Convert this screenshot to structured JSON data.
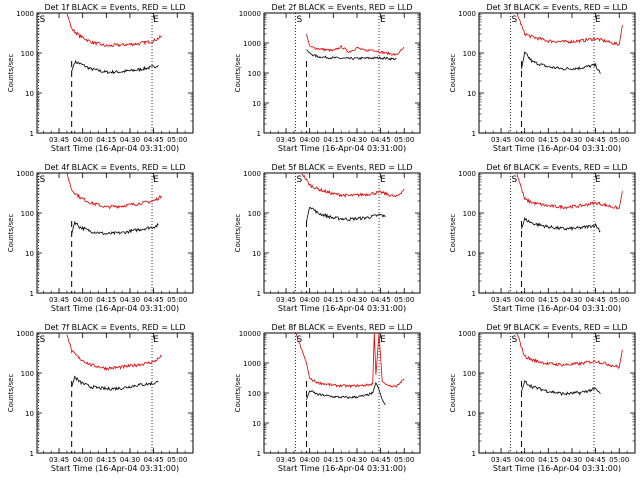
{
  "page": {
    "xlabel": "Start Time (16-Apr-04 03:31:00)",
    "ylabel": "Counts/sec",
    "marker_s": "S",
    "marker_e": "E"
  },
  "colors": {
    "events": "#000000",
    "lld": "#e00000",
    "axes": "#000000"
  },
  "chart_data": [
    {
      "type": "line",
      "title": "Det 1f BLACK = Events, RED = LLD",
      "xticks": [
        "03:45",
        "04:00",
        "04:15",
        "04:30",
        "04:45",
        "05:00"
      ],
      "yticks": [
        "1",
        "10",
        "100",
        "1000"
      ],
      "ylim": [
        1,
        1000
      ],
      "yscale": "log",
      "series": [
        {
          "name": "Events",
          "x": [
            "03:53",
            "03:55",
            "03:58",
            "04:05",
            "04:15",
            "04:25",
            "04:35",
            "04:45",
            "04:48"
          ],
          "y": [
            35,
            60,
            55,
            40,
            33,
            34,
            38,
            45,
            50
          ]
        },
        {
          "name": "LLD",
          "x": [
            "03:50",
            "03:53",
            "03:58",
            "04:05",
            "04:15",
            "04:25",
            "04:35",
            "04:45",
            "04:50"
          ],
          "y": [
            1000,
            400,
            270,
            190,
            150,
            160,
            170,
            200,
            260
          ]
        }
      ]
    },
    {
      "type": "line",
      "title": "Det 2f BLACK = Events, RED = LLD",
      "xticks": [
        "03:45",
        "04:00",
        "04:15",
        "04:30",
        "04:45",
        "05:00"
      ],
      "yticks": [
        "1",
        "10",
        "100",
        "1000",
        "10000"
      ],
      "ylim": [
        1,
        10000
      ],
      "yscale": "log",
      "series": [
        {
          "name": "Events",
          "x": [
            "03:58",
            "04:00",
            "04:05",
            "04:15",
            "04:25",
            "04:35",
            "04:45",
            "04:55"
          ],
          "y": [
            600,
            450,
            350,
            320,
            300,
            310,
            320,
            290
          ]
        },
        {
          "name": "LLD",
          "x": [
            "03:58",
            "04:00",
            "04:05",
            "04:15",
            "04:20",
            "04:25",
            "04:30",
            "04:35",
            "04:40",
            "04:45",
            "04:55",
            "05:00"
          ],
          "y": [
            2000,
            750,
            650,
            550,
            750,
            500,
            700,
            550,
            600,
            500,
            400,
            700
          ]
        }
      ]
    },
    {
      "type": "line",
      "title": "Det 3f BLACK = Events, RED = LLD",
      "xticks": [
        "03:45",
        "04:00",
        "04:15",
        "04:30",
        "04:45",
        "05:00"
      ],
      "yticks": [
        "1",
        "10",
        "100",
        "1000"
      ],
      "ylim": [
        1,
        1000
      ],
      "yscale": "log",
      "series": [
        {
          "name": "Events",
          "x": [
            "03:58",
            "04:00",
            "04:05",
            "04:15",
            "04:25",
            "04:35",
            "04:45",
            "04:48"
          ],
          "y": [
            40,
            100,
            60,
            45,
            40,
            42,
            50,
            30
          ]
        },
        {
          "name": "LLD",
          "x": [
            "03:55",
            "04:00",
            "04:05",
            "04:15",
            "04:25",
            "04:35",
            "04:45",
            "05:00",
            "05:02"
          ],
          "y": [
            1000,
            300,
            250,
            200,
            190,
            200,
            230,
            160,
            500
          ]
        }
      ]
    },
    {
      "type": "line",
      "title": "Det 4f BLACK = Events, RED = LLD",
      "xticks": [
        "03:45",
        "04:00",
        "04:15",
        "04:30",
        "04:45",
        "05:00"
      ],
      "yticks": [
        "1",
        "10",
        "100",
        "1000"
      ],
      "ylim": [
        1,
        1000
      ],
      "yscale": "log",
      "series": [
        {
          "name": "Events",
          "x": [
            "03:53",
            "03:55",
            "03:58",
            "04:05",
            "04:15",
            "04:25",
            "04:35",
            "04:45",
            "04:48"
          ],
          "y": [
            30,
            60,
            45,
            35,
            30,
            32,
            38,
            45,
            50
          ]
        },
        {
          "name": "LLD",
          "x": [
            "03:50",
            "03:53",
            "03:58",
            "04:05",
            "04:15",
            "04:25",
            "04:35",
            "04:45",
            "04:50"
          ],
          "y": [
            1000,
            380,
            250,
            180,
            140,
            150,
            170,
            200,
            260
          ]
        }
      ]
    },
    {
      "type": "line",
      "title": "Det 5f BLACK = Events, RED = LLD",
      "xticks": [
        "03:45",
        "04:00",
        "04:15",
        "04:30",
        "04:45",
        "05:00"
      ],
      "yticks": [
        "1",
        "10",
        "100",
        "1000"
      ],
      "ylim": [
        1,
        1000
      ],
      "yscale": "log",
      "series": [
        {
          "name": "Events",
          "x": [
            "03:58",
            "04:00",
            "04:05",
            "04:15",
            "04:25",
            "04:35",
            "04:45",
            "04:48"
          ],
          "y": [
            60,
            150,
            100,
            75,
            70,
            75,
            90,
            80
          ]
        },
        {
          "name": "LLD",
          "x": [
            "03:55",
            "04:00",
            "04:05",
            "04:15",
            "04:25",
            "04:35",
            "04:45",
            "04:55",
            "05:00"
          ],
          "y": [
            1000,
            500,
            400,
            300,
            270,
            290,
            330,
            250,
            400
          ]
        }
      ]
    },
    {
      "type": "line",
      "title": "Det 6f BLACK = Events, RED = LLD",
      "xticks": [
        "03:45",
        "04:00",
        "04:15",
        "04:30",
        "04:45",
        "05:00"
      ],
      "yticks": [
        "1",
        "10",
        "100",
        "1000"
      ],
      "ylim": [
        1,
        1000
      ],
      "yscale": "log",
      "series": [
        {
          "name": "Events",
          "x": [
            "03:58",
            "04:00",
            "04:05",
            "04:15",
            "04:25",
            "04:35",
            "04:45",
            "04:48"
          ],
          "y": [
            40,
            70,
            55,
            45,
            40,
            42,
            50,
            35
          ]
        },
        {
          "name": "LLD",
          "x": [
            "03:55",
            "04:00",
            "04:05",
            "04:15",
            "04:25",
            "04:35",
            "04:45",
            "05:00",
            "05:02"
          ],
          "y": [
            1000,
            220,
            180,
            150,
            140,
            150,
            180,
            130,
            350
          ]
        }
      ]
    },
    {
      "type": "line",
      "title": "Det 7f BLACK = Events, RED = LLD",
      "xticks": [
        "03:45",
        "04:00",
        "04:15",
        "04:30",
        "04:45",
        "05:00"
      ],
      "yticks": [
        "1",
        "10",
        "100",
        "1000"
      ],
      "ylim": [
        1,
        1000
      ],
      "yscale": "log",
      "series": [
        {
          "name": "Events",
          "x": [
            "03:53",
            "03:55",
            "03:58",
            "04:05",
            "04:15",
            "04:25",
            "04:35",
            "04:45",
            "04:48"
          ],
          "y": [
            45,
            80,
            60,
            45,
            40,
            42,
            50,
            55,
            60
          ]
        },
        {
          "name": "LLD",
          "x": [
            "03:50",
            "03:53",
            "03:58",
            "04:05",
            "04:15",
            "04:25",
            "04:35",
            "04:45",
            "04:50"
          ],
          "y": [
            1000,
            350,
            230,
            160,
            130,
            140,
            160,
            190,
            260
          ]
        }
      ]
    },
    {
      "type": "line",
      "title": "Det 8f BLACK = Events, RED = LLD",
      "xticks": [
        "03:45",
        "04:00",
        "04:15",
        "04:30",
        "04:45",
        "05:00"
      ],
      "yticks": [
        "1",
        "10",
        "100",
        "1000",
        "10000"
      ],
      "ylim": [
        1,
        10000
      ],
      "yscale": "log",
      "series": [
        {
          "name": "Events",
          "x": [
            "03:58",
            "04:00",
            "04:05",
            "04:15",
            "04:25",
            "04:35",
            "04:40",
            "04:42",
            "04:44",
            "04:46",
            "04:48"
          ],
          "y": [
            60,
            120,
            90,
            75,
            70,
            80,
            100,
            220,
            130,
            60,
            40
          ]
        },
        {
          "name": "LLD",
          "x": [
            "03:51",
            "03:58",
            "04:00",
            "04:05",
            "04:15",
            "04:25",
            "04:35",
            "04:40",
            "04:41",
            "04:42",
            "04:44",
            "04:46",
            "04:48",
            "04:50",
            "04:55",
            "05:00"
          ],
          "y": [
            10000,
            1000,
            300,
            220,
            180,
            170,
            180,
            200,
            10000,
            400,
            10000,
            250,
            200,
            180,
            160,
            300
          ]
        }
      ]
    },
    {
      "type": "line",
      "title": "Det 9f BLACK = Events, RED = LLD",
      "xticks": [
        "03:45",
        "04:00",
        "04:15",
        "04:30",
        "04:45",
        "05:00"
      ],
      "yticks": [
        "1",
        "10",
        "100",
        "1000"
      ],
      "ylim": [
        1,
        1000
      ],
      "yscale": "log",
      "series": [
        {
          "name": "Events",
          "x": [
            "03:58",
            "04:00",
            "04:05",
            "04:15",
            "04:25",
            "04:35",
            "04:45",
            "04:48"
          ],
          "y": [
            35,
            60,
            45,
            35,
            30,
            32,
            40,
            30
          ]
        },
        {
          "name": "LLD",
          "x": [
            "03:55",
            "04:00",
            "04:05",
            "04:15",
            "04:25",
            "04:35",
            "04:45",
            "05:00",
            "05:02"
          ],
          "y": [
            1000,
            260,
            210,
            170,
            160,
            170,
            200,
            140,
            380
          ]
        }
      ]
    }
  ]
}
